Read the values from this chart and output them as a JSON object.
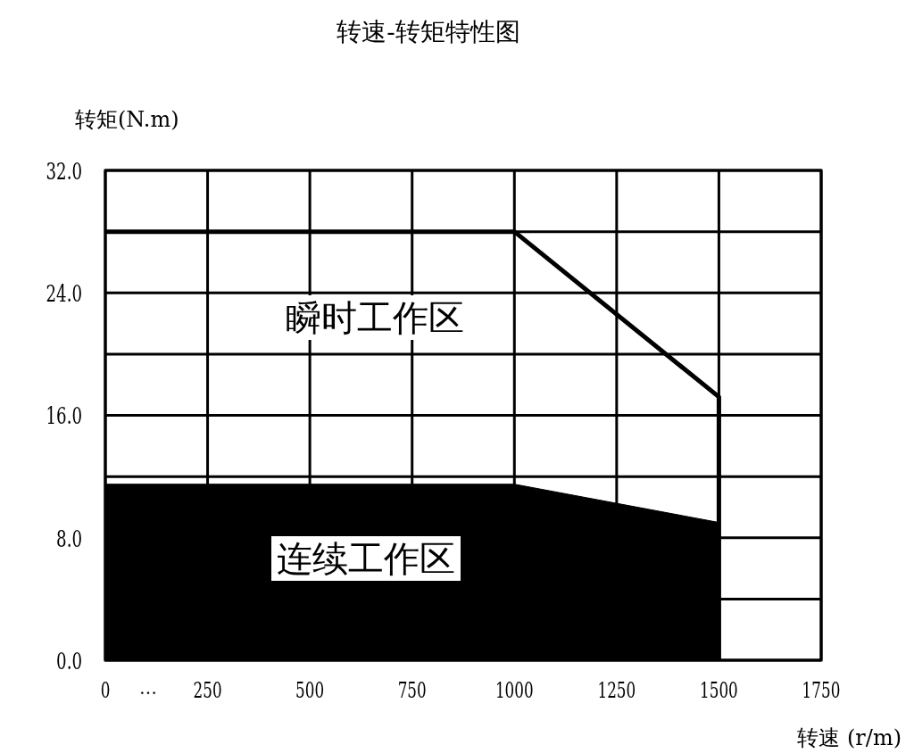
{
  "chart_data": {
    "type": "line",
    "title": "转速-转矩特性图",
    "xlabel": "转速 (r/m)",
    "ylabel": "转矩(N.m)",
    "xlim": [
      0,
      1750
    ],
    "xticks": [
      0,
      250,
      500,
      750,
      1000,
      1250,
      1500,
      1750
    ],
    "ylim": [
      0,
      32
    ],
    "yticks": [
      {
        "value": 0,
        "label": "0.0"
      },
      {
        "value": 4,
        "label": null
      },
      {
        "value": 8,
        "label": "8.0"
      },
      {
        "value": 12,
        "label": null
      },
      {
        "value": 16,
        "label": "16.0"
      },
      {
        "value": 20,
        "label": null
      },
      {
        "value": 24,
        "label": "24.0"
      },
      {
        "value": 28,
        "label": null
      },
      {
        "value": 32,
        "label": "32.0"
      }
    ],
    "grid": true,
    "series": [
      {
        "type": "area",
        "color": "#000000",
        "x": [
          0,
          1000,
          1500
        ],
        "values": [
          11.5,
          11.5,
          9.0
        ]
      },
      {
        "color": "#000000",
        "x": [
          0,
          1000,
          1500,
          1500
        ],
        "values": [
          28.0,
          28.0,
          17.2,
          0
        ]
      }
    ],
    "annotations": [
      "…",
      "瞬时工作区",
      "连续工作区"
    ]
  }
}
